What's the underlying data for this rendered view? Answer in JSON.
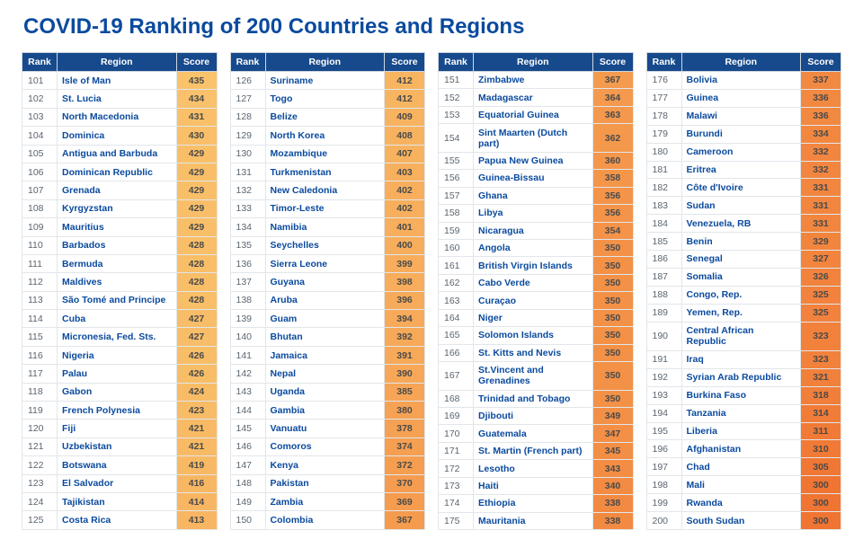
{
  "title": "COVID-19 Ranking of 200 Countries and Regions",
  "colors": {
    "header_bg": "#174a8c",
    "header_fg": "#ffffff",
    "title_color": "#0a4a9e",
    "region_text": "#0a4a9e",
    "rank_text": "#5a6570",
    "score_text": "#4a4a4a",
    "cell_border": "#e2e6ea",
    "background": "#ffffff"
  },
  "score_color_scale": {
    "min_score": 300,
    "max_score": 435,
    "min_color": "#f07432",
    "max_color": "#f9c26b"
  },
  "headers": {
    "rank": "Rank",
    "region": "Region",
    "score": "Score"
  },
  "table_count": 4,
  "rows_per_table": 25,
  "rows": [
    {
      "rank": 101,
      "region": "Isle of Man",
      "score": 435
    },
    {
      "rank": 102,
      "region": "St. Lucia",
      "score": 434
    },
    {
      "rank": 103,
      "region": "North Macedonia",
      "score": 431
    },
    {
      "rank": 104,
      "region": "Dominica",
      "score": 430
    },
    {
      "rank": 105,
      "region": "Antigua and Barbuda",
      "score": 429
    },
    {
      "rank": 106,
      "region": "Dominican Republic",
      "score": 429
    },
    {
      "rank": 107,
      "region": "Grenada",
      "score": 429
    },
    {
      "rank": 108,
      "region": "Kyrgyzstan",
      "score": 429
    },
    {
      "rank": 109,
      "region": "Mauritius",
      "score": 429
    },
    {
      "rank": 110,
      "region": "Barbados",
      "score": 428
    },
    {
      "rank": 111,
      "region": "Bermuda",
      "score": 428
    },
    {
      "rank": 112,
      "region": "Maldives",
      "score": 428
    },
    {
      "rank": 113,
      "region": "São Tomé and Principe",
      "score": 428
    },
    {
      "rank": 114,
      "region": "Cuba",
      "score": 427
    },
    {
      "rank": 115,
      "region": "Micronesia, Fed. Sts.",
      "score": 427
    },
    {
      "rank": 116,
      "region": "Nigeria",
      "score": 426
    },
    {
      "rank": 117,
      "region": "Palau",
      "score": 426
    },
    {
      "rank": 118,
      "region": "Gabon",
      "score": 424
    },
    {
      "rank": 119,
      "region": "French Polynesia",
      "score": 423
    },
    {
      "rank": 120,
      "region": "Fiji",
      "score": 421
    },
    {
      "rank": 121,
      "region": "Uzbekistan",
      "score": 421
    },
    {
      "rank": 122,
      "region": "Botswana",
      "score": 419
    },
    {
      "rank": 123,
      "region": "El Salvador",
      "score": 416
    },
    {
      "rank": 124,
      "region": "Tajikistan",
      "score": 414
    },
    {
      "rank": 125,
      "region": "Costa Rica",
      "score": 413
    },
    {
      "rank": 126,
      "region": "Suriname",
      "score": 412
    },
    {
      "rank": 127,
      "region": "Togo",
      "score": 412
    },
    {
      "rank": 128,
      "region": "Belize",
      "score": 409
    },
    {
      "rank": 129,
      "region": "North Korea",
      "score": 408
    },
    {
      "rank": 130,
      "region": "Mozambique",
      "score": 407
    },
    {
      "rank": 131,
      "region": "Turkmenistan",
      "score": 403
    },
    {
      "rank": 132,
      "region": "New Caledonia",
      "score": 402
    },
    {
      "rank": 133,
      "region": "Timor-Leste",
      "score": 402
    },
    {
      "rank": 134,
      "region": "Namibia",
      "score": 401
    },
    {
      "rank": 135,
      "region": "Seychelles",
      "score": 400
    },
    {
      "rank": 136,
      "region": "Sierra Leone",
      "score": 399
    },
    {
      "rank": 137,
      "region": "Guyana",
      "score": 398
    },
    {
      "rank": 138,
      "region": "Aruba",
      "score": 396
    },
    {
      "rank": 139,
      "region": "Guam",
      "score": 394
    },
    {
      "rank": 140,
      "region": "Bhutan",
      "score": 392
    },
    {
      "rank": 141,
      "region": "Jamaica",
      "score": 391
    },
    {
      "rank": 142,
      "region": "Nepal",
      "score": 390
    },
    {
      "rank": 143,
      "region": "Uganda",
      "score": 385
    },
    {
      "rank": 144,
      "region": "Gambia",
      "score": 380
    },
    {
      "rank": 145,
      "region": "Vanuatu",
      "score": 378
    },
    {
      "rank": 146,
      "region": "Comoros",
      "score": 374
    },
    {
      "rank": 147,
      "region": "Kenya",
      "score": 372
    },
    {
      "rank": 148,
      "region": "Pakistan",
      "score": 370
    },
    {
      "rank": 149,
      "region": "Zambia",
      "score": 369
    },
    {
      "rank": 150,
      "region": "Colombia",
      "score": 367
    },
    {
      "rank": 151,
      "region": "Zimbabwe",
      "score": 367
    },
    {
      "rank": 152,
      "region": "Madagascar",
      "score": 364
    },
    {
      "rank": 153,
      "region": "Equatorial Guinea",
      "score": 363
    },
    {
      "rank": 154,
      "region": "Sint Maarten (Dutch part)",
      "score": 362
    },
    {
      "rank": 155,
      "region": "Papua New Guinea",
      "score": 360
    },
    {
      "rank": 156,
      "region": "Guinea-Bissau",
      "score": 358
    },
    {
      "rank": 157,
      "region": "Ghana",
      "score": 356
    },
    {
      "rank": 158,
      "region": "Libya",
      "score": 356
    },
    {
      "rank": 159,
      "region": "Nicaragua",
      "score": 354
    },
    {
      "rank": 160,
      "region": "Angola",
      "score": 350
    },
    {
      "rank": 161,
      "region": "British Virgin Islands",
      "score": 350
    },
    {
      "rank": 162,
      "region": "Cabo Verde",
      "score": 350
    },
    {
      "rank": 163,
      "region": "Curaçao",
      "score": 350
    },
    {
      "rank": 164,
      "region": "Niger",
      "score": 350
    },
    {
      "rank": 165,
      "region": "Solomon Islands",
      "score": 350
    },
    {
      "rank": 166,
      "region": "St. Kitts and Nevis",
      "score": 350
    },
    {
      "rank": 167,
      "region": "St.Vincent and Grenadines",
      "score": 350
    },
    {
      "rank": 168,
      "region": "Trinidad and Tobago",
      "score": 350
    },
    {
      "rank": 169,
      "region": "Djibouti",
      "score": 349
    },
    {
      "rank": 170,
      "region": "Guatemala",
      "score": 347
    },
    {
      "rank": 171,
      "region": "St. Martin (French part)",
      "score": 345
    },
    {
      "rank": 172,
      "region": "Lesotho",
      "score": 343
    },
    {
      "rank": 173,
      "region": "Haiti",
      "score": 340
    },
    {
      "rank": 174,
      "region": "Ethiopia",
      "score": 338
    },
    {
      "rank": 175,
      "region": "Mauritania",
      "score": 338
    },
    {
      "rank": 176,
      "region": "Bolivia",
      "score": 337
    },
    {
      "rank": 177,
      "region": "Guinea",
      "score": 336
    },
    {
      "rank": 178,
      "region": "Malawi",
      "score": 336
    },
    {
      "rank": 179,
      "region": "Burundi",
      "score": 334
    },
    {
      "rank": 180,
      "region": "Cameroon",
      "score": 332
    },
    {
      "rank": 181,
      "region": "Eritrea",
      "score": 332
    },
    {
      "rank": 182,
      "region": "Côte d'Ivoire",
      "score": 331
    },
    {
      "rank": 183,
      "region": "Sudan",
      "score": 331
    },
    {
      "rank": 184,
      "region": "Venezuela, RB",
      "score": 331
    },
    {
      "rank": 185,
      "region": "Benin",
      "score": 329
    },
    {
      "rank": 186,
      "region": "Senegal",
      "score": 327
    },
    {
      "rank": 187,
      "region": "Somalia",
      "score": 326
    },
    {
      "rank": 188,
      "region": "Congo, Rep.",
      "score": 325
    },
    {
      "rank": 189,
      "region": "Yemen, Rep.",
      "score": 325
    },
    {
      "rank": 190,
      "region": "Central African Republic",
      "score": 323
    },
    {
      "rank": 191,
      "region": "Iraq",
      "score": 323
    },
    {
      "rank": 192,
      "region": "Syrian Arab Republic",
      "score": 321
    },
    {
      "rank": 193,
      "region": "Burkina Faso",
      "score": 318
    },
    {
      "rank": 194,
      "region": "Tanzania",
      "score": 314
    },
    {
      "rank": 195,
      "region": "Liberia",
      "score": 311
    },
    {
      "rank": 196,
      "region": "Afghanistan",
      "score": 310
    },
    {
      "rank": 197,
      "region": "Chad",
      "score": 305
    },
    {
      "rank": 198,
      "region": "Mali",
      "score": 300
    },
    {
      "rank": 199,
      "region": "Rwanda",
      "score": 300
    },
    {
      "rank": 200,
      "region": "South Sudan",
      "score": 300
    }
  ]
}
